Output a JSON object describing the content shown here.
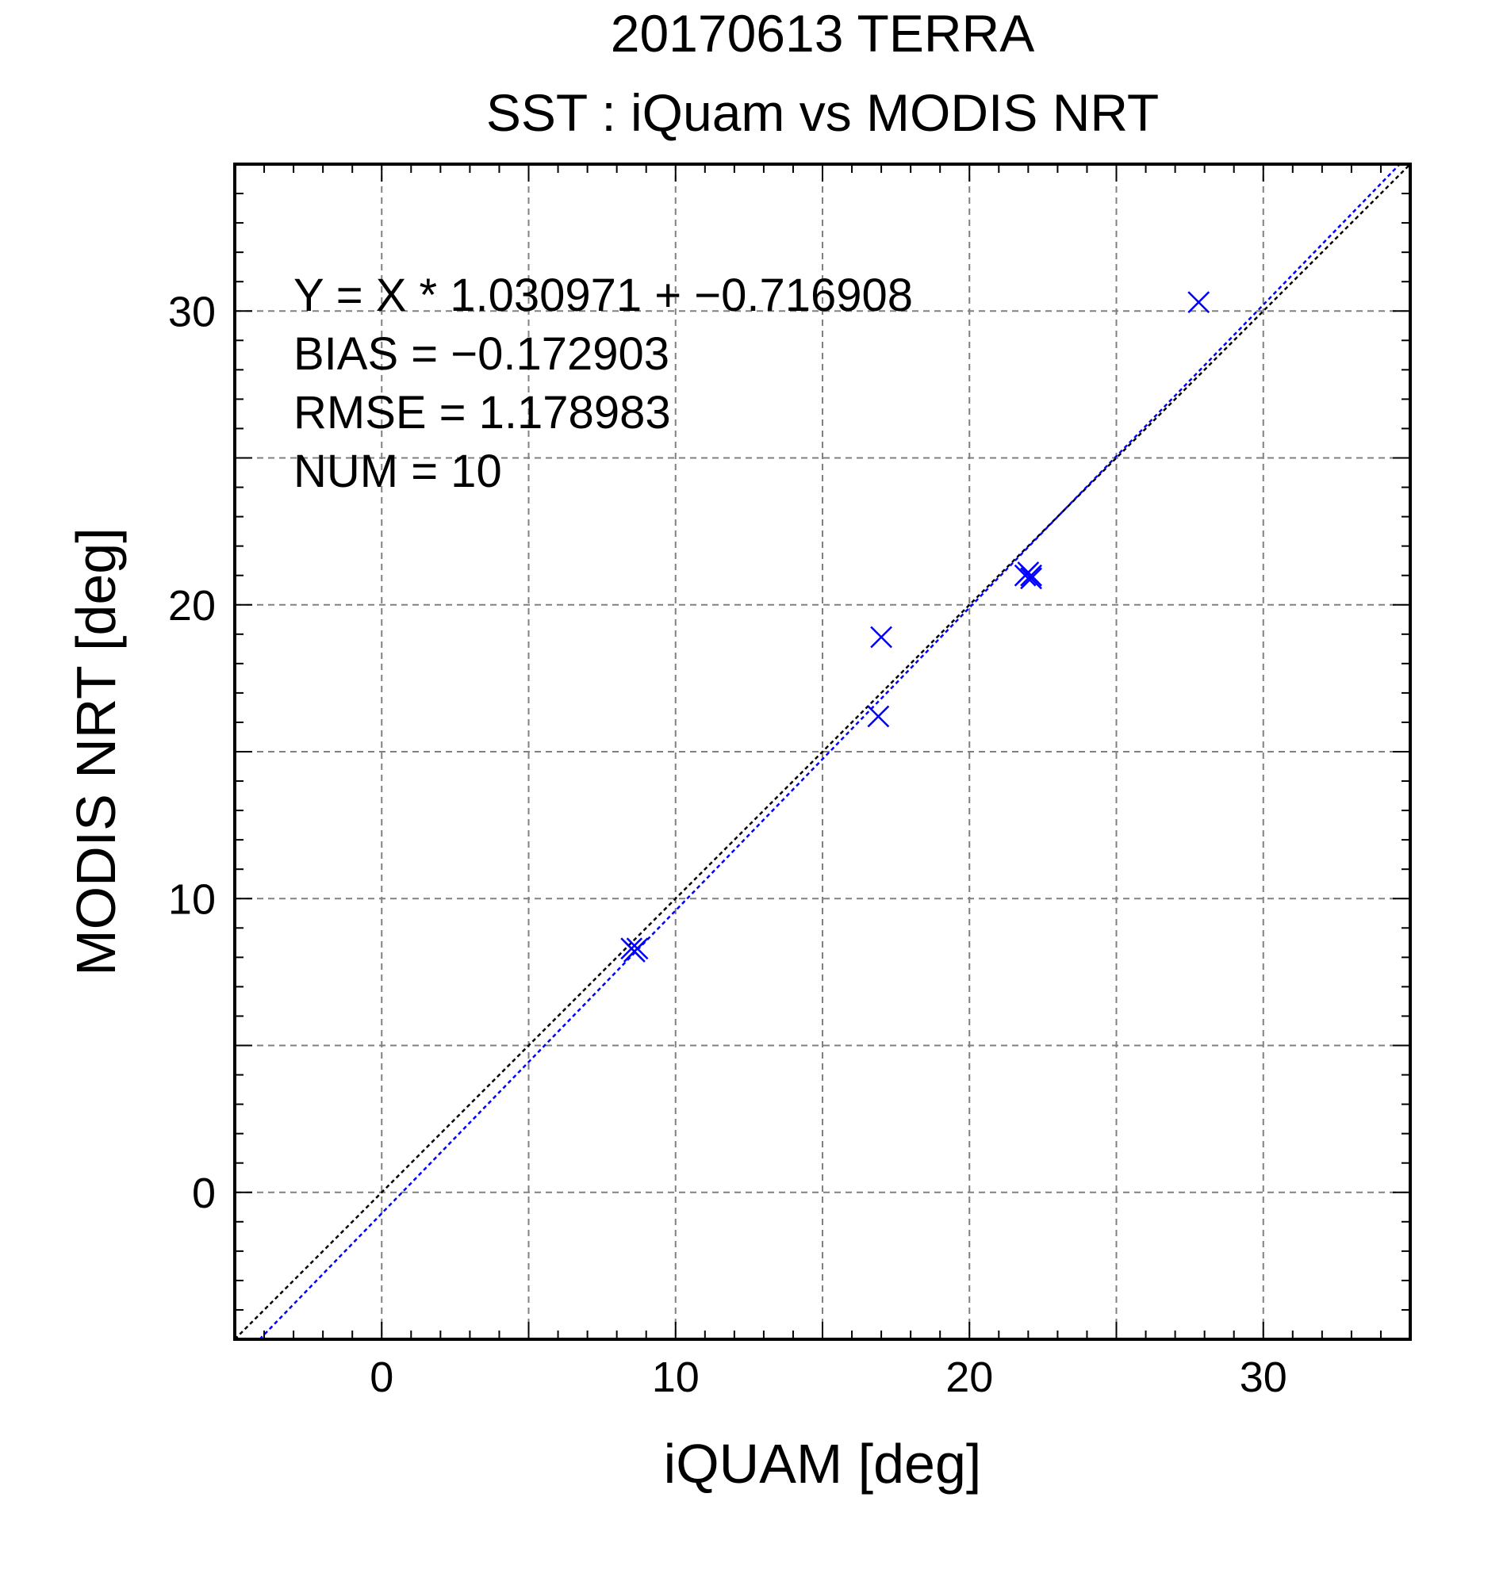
{
  "chart_data": {
    "type": "scatter",
    "title": "20170613 TERRA",
    "subtitle": "SST : iQuam vs MODIS NRT",
    "xlabel": "iQUAM [deg]",
    "ylabel": "MODIS NRT [deg]",
    "xlim": [
      -5,
      35
    ],
    "ylim": [
      -5,
      35
    ],
    "xticks": [
      0,
      10,
      20,
      30
    ],
    "yticks": [
      0,
      10,
      20,
      30
    ],
    "grid": true,
    "annotations": [
      "Y = X * 1.030971 + −0.716908",
      "BIAS = −0.172903",
      "RMSE = 1.178983",
      "NUM = 10"
    ],
    "regression": {
      "slope": 1.030971,
      "intercept": -0.716908
    },
    "points": [
      {
        "x": 8.5,
        "y": 8.3
      },
      {
        "x": 8.6,
        "y": 8.2
      },
      {
        "x": 8.7,
        "y": 8.3
      },
      {
        "x": 16.9,
        "y": 16.2
      },
      {
        "x": 17.0,
        "y": 18.9
      },
      {
        "x": 21.9,
        "y": 21.0
      },
      {
        "x": 22.0,
        "y": 21.1
      },
      {
        "x": 22.1,
        "y": 20.9
      },
      {
        "x": 22.1,
        "y": 21.0
      },
      {
        "x": 27.8,
        "y": 30.3
      }
    ],
    "colors": {
      "points": "#0000ff",
      "fit_line": "#0000ff",
      "identity_line": "#000000",
      "grid": "#808080"
    }
  }
}
